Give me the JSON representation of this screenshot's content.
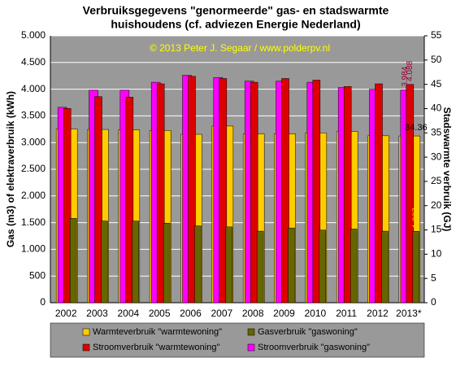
{
  "chart_data": {
    "type": "bar",
    "title": "Verbruiksgegevens \"genormeerde\" gas- en stadswarmte",
    "subtitle": "huishoudens (cf. adviezen Energie Nederland)",
    "annotation": "© 2013 Peter J. Segaar / www.polderpv.nl",
    "y_label": "Gas (m3) of elektraverbruik (kWh)",
    "y2_label": "Stadswarmte verbruik (GJ)",
    "categories": [
      "2002",
      "2003",
      "2004",
      "2005",
      "2006",
      "2007",
      "2008",
      "2009",
      "2010",
      "2011",
      "2012",
      "2013*"
    ],
    "ylim": [
      0,
      5000
    ],
    "yticks": [
      0,
      500,
      {
        "value": 1000,
        "label": "1.000"
      },
      {
        "value": 1500,
        "label": "1.500"
      },
      {
        "value": 2000,
        "label": "2.000"
      },
      {
        "value": 2500,
        "label": "2.500"
      },
      {
        "value": 3000,
        "label": "3.000"
      },
      {
        "value": 3500,
        "label": "3.500"
      },
      {
        "value": 4000,
        "label": "4.000"
      },
      {
        "value": 4500,
        "label": "4.500"
      },
      {
        "value": 5000,
        "label": "5.000"
      }
    ],
    "y2lim": [
      0,
      55
    ],
    "y2ticks": [
      0,
      5,
      10,
      15,
      20,
      25,
      30,
      35,
      40,
      45,
      50,
      55
    ],
    "grid": true,
    "legend": "bottom",
    "series": [
      {
        "name": "Warmteverbruik \"warmtewoning\"",
        "color": "#ffcc00",
        "axis": "y2",
        "values": [
          35.8,
          35.7,
          35.6,
          35.5,
          34.7,
          36.4,
          34.8,
          34.8,
          35.0,
          35.3,
          34.4,
          34.36
        ],
        "value_labels": [
          null,
          null,
          null,
          null,
          null,
          null,
          null,
          null,
          null,
          null,
          null,
          "34.36"
        ]
      },
      {
        "name": "Gasverbruik \"gaswoning\"",
        "color": "#666600",
        "values": [
          1580,
          1530,
          1530,
          1490,
          1440,
          1420,
          1340,
          1400,
          1360,
          1380,
          1340,
          1337
        ],
        "value_labels": [
          null,
          null,
          null,
          null,
          null,
          null,
          null,
          null,
          null,
          null,
          null,
          "1.337"
        ]
      },
      {
        "name": "Stroomverbruik \"warmtewoning\"",
        "color": "#dd0000",
        "values": [
          3640,
          3860,
          3850,
          4100,
          4240,
          4200,
          4130,
          4200,
          4170,
          4050,
          4100,
          4088
        ],
        "value_labels": [
          null,
          null,
          null,
          null,
          null,
          null,
          null,
          null,
          null,
          null,
          null,
          "4.088"
        ]
      },
      {
        "name": "Stroomverbruik \"gaswoning\"",
        "color": "#ff00ff",
        "values": [
          3660,
          3980,
          3980,
          4130,
          4260,
          4220,
          4150,
          4150,
          4130,
          4030,
          4000,
          3984
        ],
        "value_labels": [
          null,
          null,
          null,
          null,
          null,
          null,
          null,
          null,
          null,
          null,
          null,
          "3.984"
        ]
      }
    ]
  }
}
